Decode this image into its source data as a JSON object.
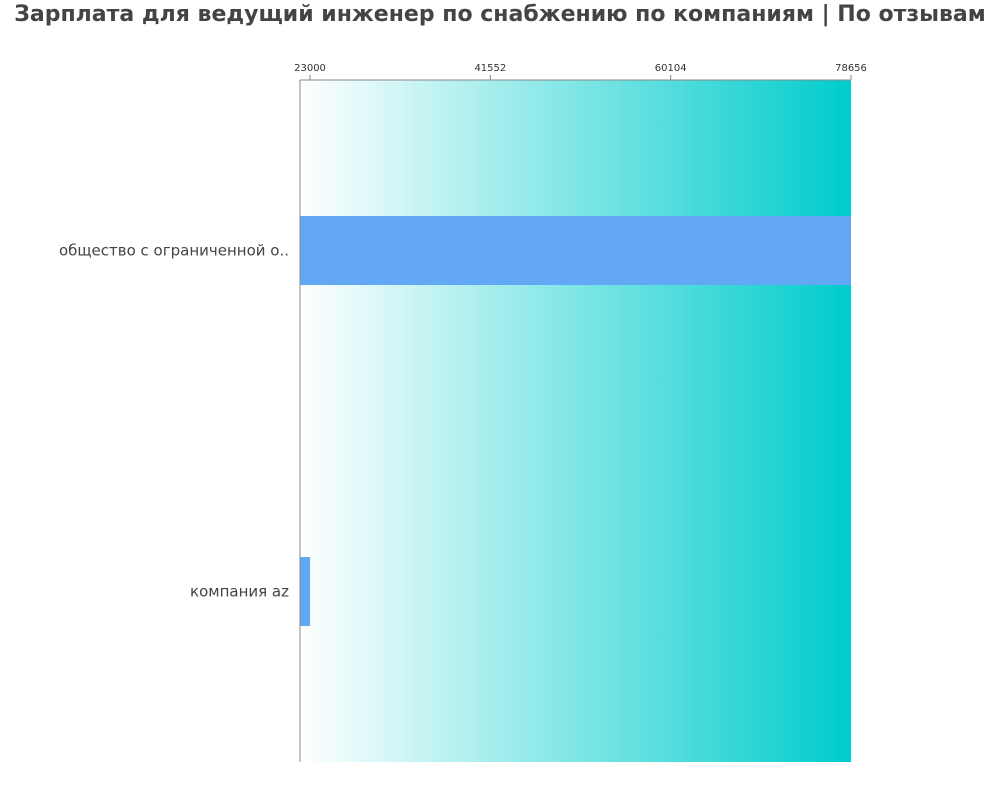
{
  "title": "Зарплата для ведущий инженер по снабжению по компаниям  | По отзывам",
  "chart_data": {
    "type": "bar",
    "orientation": "horizontal",
    "categories": [
      "общество с ограниченной о..",
      "компания az"
    ],
    "values": [
      78656,
      23000
    ],
    "tick_labels": [
      "23000",
      "41552",
      "60104",
      "78656"
    ],
    "ticks": [
      23000,
      41552,
      60104,
      78656
    ],
    "xlim": [
      21969,
      78656
    ],
    "axis_position": "top",
    "grid": false,
    "bar_color": "#62a8f4",
    "background_gradient": [
      "#ffffff",
      "#00cccc"
    ]
  }
}
